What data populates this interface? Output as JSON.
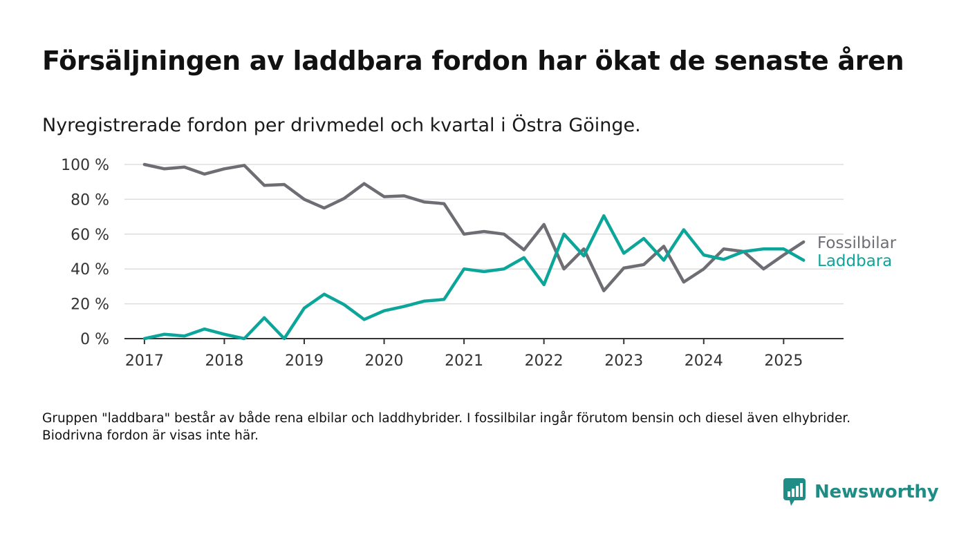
{
  "header": {
    "title": "Försäljningen av laddbara fordon har ökat de senaste åren",
    "subtitle": "Nyregistrerade fordon per drivmedel och kvartal i Östra Göinge."
  },
  "footer": {
    "note": "Gruppen \"laddbara\" består av både rena elbilar och laddhybrider. I fossilbilar ingår förutom bensin och diesel även elhybrider. Biodrivna fordon är visas inte här.",
    "brand": "Newsworthy",
    "brand_icon": "bar-chart-logo-icon"
  },
  "colors": {
    "fossil": "#6f6d73",
    "laddbara": "#0ca59a",
    "grid": "#dddddd",
    "axis": "#333333",
    "brand": "#1f8d85"
  },
  "chart_data": {
    "type": "line",
    "title": "Försäljningen av laddbara fordon har ökat de senaste åren",
    "subtitle": "Nyregistrerade fordon per drivmedel och kvartal i Östra Göinge.",
    "xlabel": "",
    "ylabel": "",
    "ylim": [
      0,
      100
    ],
    "xlim": [
      "2016-Q4",
      "2025-Q3"
    ],
    "y_ticks": [
      0,
      20,
      40,
      60,
      80,
      100
    ],
    "y_tick_labels": [
      "0 %",
      "20 %",
      "40 %",
      "60 %",
      "80 %",
      "100 %"
    ],
    "x_ticks": [
      "2017",
      "2018",
      "2019",
      "2020",
      "2021",
      "2022",
      "2023",
      "2024",
      "2025"
    ],
    "grid": true,
    "legend": "direct labels at line ends",
    "x": [
      "2017-Q1",
      "2017-Q2",
      "2017-Q3",
      "2017-Q4",
      "2018-Q1",
      "2018-Q2",
      "2018-Q3",
      "2018-Q4",
      "2019-Q1",
      "2019-Q2",
      "2019-Q3",
      "2019-Q4",
      "2020-Q1",
      "2020-Q2",
      "2020-Q3",
      "2020-Q4",
      "2021-Q1",
      "2021-Q2",
      "2021-Q3",
      "2021-Q4",
      "2022-Q1",
      "2022-Q2",
      "2022-Q3",
      "2022-Q4",
      "2023-Q1",
      "2023-Q2",
      "2023-Q3",
      "2023-Q4",
      "2024-Q1",
      "2024-Q2",
      "2024-Q3",
      "2024-Q4",
      "2025-Q1",
      "2025-Q2"
    ],
    "series": [
      {
        "name": "Fossilbilar",
        "color": "#6f6d73",
        "values": [
          100,
          97.5,
          98.5,
          94.5,
          97.5,
          99.5,
          88,
          88.5,
          80,
          75,
          80.5,
          89,
          81.5,
          82,
          78.5,
          77.5,
          60,
          61.5,
          60,
          51,
          65.5,
          40,
          51.5,
          27.5,
          40.5,
          42.5,
          53,
          32.5,
          40,
          51.5,
          50,
          40,
          48,
          55.5
        ]
      },
      {
        "name": "Laddbara",
        "color": "#0ca59a",
        "values": [
          0,
          2.5,
          1.5,
          5.5,
          2.5,
          0,
          12,
          0,
          17.5,
          25.5,
          19.5,
          11,
          16,
          18.5,
          21.5,
          22.5,
          40,
          38.5,
          40,
          46.5,
          31,
          60,
          47.5,
          70.5,
          49,
          57.5,
          45,
          62.5,
          48,
          45.5,
          50,
          51.5,
          51.5,
          45
        ]
      }
    ]
  }
}
